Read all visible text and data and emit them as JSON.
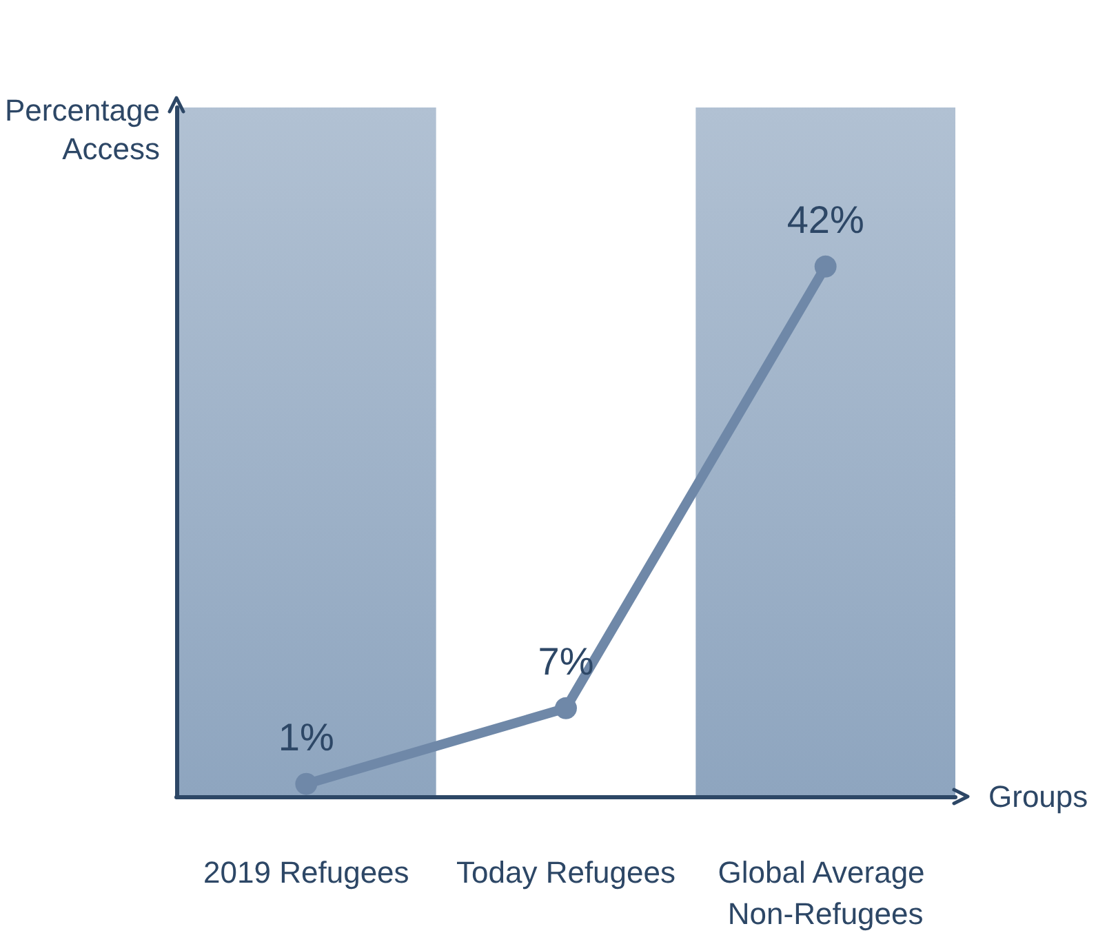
{
  "chart_data": {
    "type": "line",
    "xlabel": "Groups",
    "ylabel": "Percentage Access",
    "categories": [
      "2019 Refugees",
      "Today Refugees",
      "Global Average Non-Refugees"
    ],
    "series": [
      {
        "color": "#6f88a8",
        "values": [
          1,
          7,
          42
        ]
      }
    ],
    "value_labels": [
      "1%",
      "7%",
      "42%"
    ],
    "data_labels": true,
    "marker": "circle",
    "line_style": "solid",
    "grid": false,
    "bands": [
      {
        "axis": "x",
        "from": "2019 Refugees",
        "to": "2019 Refugees",
        "color": "#8ea5bf"
      },
      {
        "axis": "x",
        "from": "Global Average Non-Refugees",
        "to": "Global Average Non-Refugees",
        "color": "#8ea5bf"
      }
    ]
  }
}
